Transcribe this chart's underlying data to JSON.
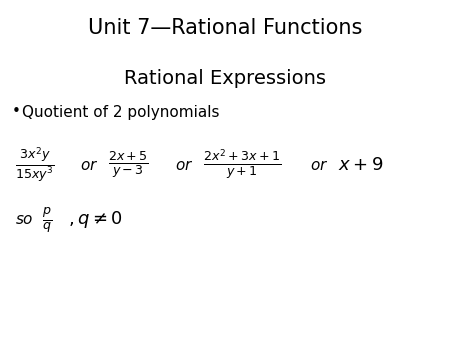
{
  "title": "Unit 7—Rational Functions",
  "subtitle": "Rational Expressions",
  "bullet": "Quotient of 2 polynomials",
  "background_color": "#ffffff",
  "text_color": "#000000",
  "title_fontsize": 15,
  "subtitle_fontsize": 14,
  "bullet_fontsize": 11,
  "math_fontsize": 11,
  "fig_width": 4.5,
  "fig_height": 3.38,
  "dpi": 100
}
